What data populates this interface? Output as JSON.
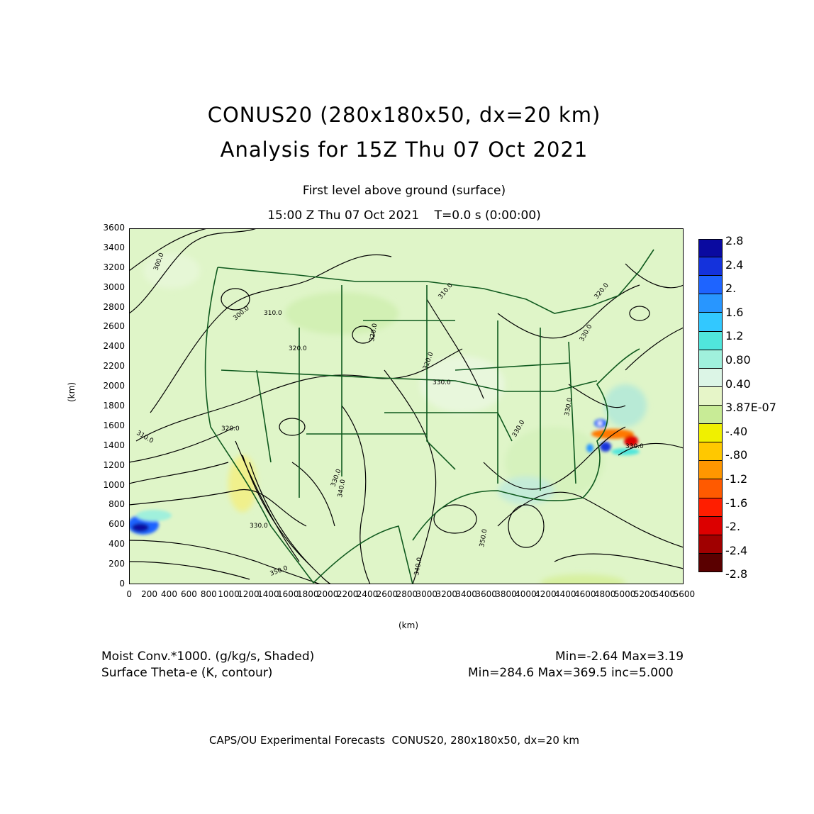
{
  "header": {
    "title_line1": "CONUS20 (280x180x50, dx=20 km)",
    "title_line2": "Analysis for 15Z Thu 07 Oct 2021",
    "level": "First level above ground (surface)",
    "time": "15:00 Z Thu 07 Oct 2021    T=0.0 s (0:00:00)"
  },
  "axes": {
    "x_unit": "(km)",
    "y_unit": "(km)",
    "x_ticks": [
      "0",
      "200",
      "400",
      "600",
      "800",
      "1000",
      "1200",
      "1400",
      "1600",
      "1800",
      "2000",
      "2200",
      "2400",
      "2600",
      "2800",
      "3000",
      "3200",
      "3400",
      "3600",
      "3800",
      "4000",
      "4200",
      "4400",
      "4600",
      "4800",
      "5000",
      "5200",
      "5400",
      "5600"
    ],
    "y_ticks": [
      "0",
      "200",
      "400",
      "600",
      "800",
      "1000",
      "1200",
      "1400",
      "1600",
      "1800",
      "2000",
      "2200",
      "2400",
      "2600",
      "2800",
      "3000",
      "3200",
      "3400",
      "3600"
    ],
    "x_range": [
      0,
      5600
    ],
    "y_range": [
      0,
      3600
    ]
  },
  "legend": {
    "labels": [
      "2.8",
      "2.4",
      "2.",
      "1.6",
      "1.2",
      "0.80",
      "0.40",
      "3.87E-07",
      "-.40",
      "-.80",
      "-1.2",
      "-1.6",
      "-2.",
      "-2.4",
      "-2.8"
    ],
    "colors": [
      "#0a0aa0",
      "#1432dc",
      "#1e64ff",
      "#2896ff",
      "#32c8ff",
      "#50e6dc",
      "#a0f0dc",
      "#dcf5e6",
      "#e6f5c8",
      "#c8eb96",
      "#f0f000",
      "#ffc800",
      "#ff9600",
      "#ff5a00",
      "#ff1e00",
      "#dc0000",
      "#a00000",
      "#5a0000"
    ]
  },
  "contour_labels": [
    "300.0",
    "300.0",
    "310.0",
    "320.0",
    "320.0",
    "320.0",
    "330.0",
    "330.0",
    "310.0",
    "320.0",
    "330.0",
    "340.0",
    "330.0",
    "330.0",
    "320.0",
    "310.0",
    "330.0",
    "350.0",
    "350.0",
    "340.0",
    "330.0",
    "350.0",
    "350.0",
    "330.0",
    "330.0"
  ],
  "stats": {
    "shaded_field": "Moist Conv.*1000. (g/kg/s, Shaded)",
    "shaded_minmax": "Min=-2.64 Max=3.19",
    "contour_field": "Surface Theta-e (K, contour)",
    "contour_minmax": "Min=284.6 Max=369.5 inc=5.000"
  },
  "credit": "CAPS/OU Experimental Forecasts  CONUS20, 280x180x50, dx=20 km",
  "colors": {
    "map_bg": "#dff5c8",
    "boundary": "#0f5a1e",
    "contour": "#000000"
  }
}
